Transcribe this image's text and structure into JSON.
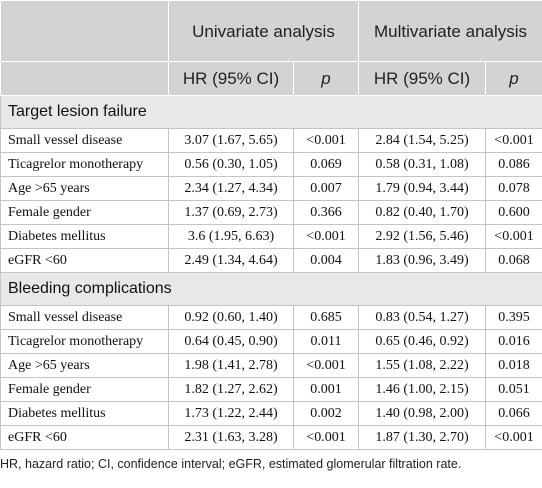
{
  "header": {
    "groups": [
      "Univariate analysis",
      "Multivariate analysis"
    ],
    "columns": [
      "HR (95% CI)",
      "p",
      "HR (95% CI)",
      "p"
    ]
  },
  "sections": [
    {
      "title": "Target lesion failure",
      "rows": [
        [
          "Small vessel disease",
          "3.07 (1.67, 5.65)",
          "<0.001",
          "2.84 (1.54, 5.25)",
          "<0.001"
        ],
        [
          "Ticagrelor monotherapy",
          "0.56 (0.30, 1.05)",
          "0.069",
          "0.58 (0.31, 1.08)",
          "0.086"
        ],
        [
          "Age >65 years",
          "2.34 (1.27, 4.34)",
          "0.007",
          "1.79 (0.94, 3.44)",
          "0.078"
        ],
        [
          "Female gender",
          "1.37 (0.69, 2.73)",
          "0.366",
          "0.82 (0.40, 1.70)",
          "0.600"
        ],
        [
          "Diabetes mellitus",
          "3.6 (1.95, 6.63)",
          "<0.001",
          "2.92 (1.56, 5.46)",
          "<0.001"
        ],
        [
          "eGFR <60",
          "2.49 (1.34, 4.64)",
          "0.004",
          "1.83 (0.96, 3.49)",
          "0.068"
        ]
      ]
    },
    {
      "title": "Bleeding complications",
      "rows": [
        [
          "Small vessel disease",
          "0.92 (0.60, 1.40)",
          "0.685",
          "0.83 (0.54, 1.27)",
          "0.395"
        ],
        [
          "Ticagrelor monotherapy",
          "0.64 (0.45, 0.90)",
          "0.011",
          "0.65 (0.46, 0.92)",
          "0.016"
        ],
        [
          "Age >65 years",
          "1.98 (1.41, 2.78)",
          "<0.001",
          "1.55 (1.08, 2.22)",
          "0.018"
        ],
        [
          "Female gender",
          "1.82 (1.27, 2.62)",
          "0.001",
          "1.46 (1.00, 2.15)",
          "0.051"
        ],
        [
          "Diabetes mellitus",
          "1.73 (1.22, 2.44)",
          "0.002",
          "1.40 (0.98, 2.00)",
          "0.066"
        ],
        [
          "eGFR <60",
          "2.31 (1.63, 3.28)",
          "<0.001",
          "1.87 (1.30, 2.70)",
          "<0.001"
        ]
      ]
    }
  ],
  "footnote": "HR, hazard ratio; CI, confidence interval; eGFR, estimated glomerular filtration rate."
}
